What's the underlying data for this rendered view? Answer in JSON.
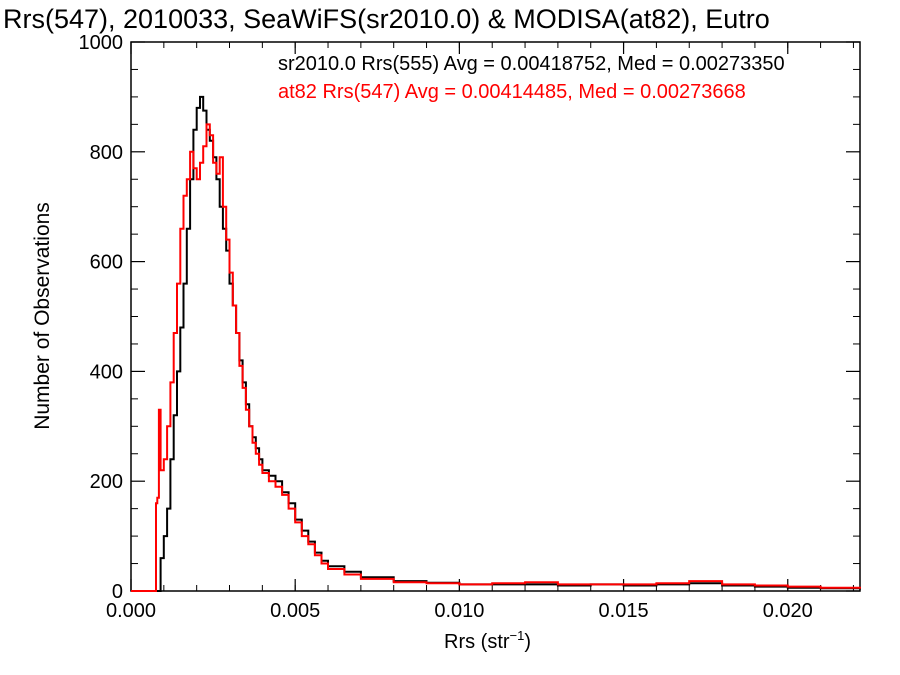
{
  "chart_data": {
    "type": "line",
    "title": "Rrs(547), 2010033, SeaWiFS(sr2010.0) & MODISA(at82), Eutro",
    "xlabel": "Rrs (str",
    "xlabel_sup": "−1",
    "xlabel_suffix": ")",
    "ylabel": "Number of Observations",
    "xlim": [
      0.0,
      0.0222
    ],
    "ylim": [
      0,
      1000
    ],
    "xticks": [
      0.0,
      0.005,
      0.01,
      0.015,
      0.02
    ],
    "xtick_labels": [
      "0.000",
      "0.005",
      "0.010",
      "0.015",
      "0.020"
    ],
    "yticks": [
      0,
      200,
      400,
      600,
      800,
      1000
    ],
    "ytick_labels": [
      "0",
      "200",
      "400",
      "600",
      "800",
      "1000"
    ],
    "series": [
      {
        "name": "sr2010.0",
        "legend": "sr2010.0 Rrs(555) Avg = 0.00418752, Med = 0.00273350",
        "color": "#000000",
        "points": [
          [
            0.0,
            0
          ],
          [
            0.0007,
            0
          ],
          [
            0.00085,
            0
          ],
          [
            0.0009,
            60
          ],
          [
            0.001,
            100
          ],
          [
            0.0011,
            150
          ],
          [
            0.0012,
            240
          ],
          [
            0.0013,
            320
          ],
          [
            0.0014,
            400
          ],
          [
            0.0015,
            480
          ],
          [
            0.0016,
            560
          ],
          [
            0.0017,
            660
          ],
          [
            0.0018,
            750
          ],
          [
            0.0019,
            840
          ],
          [
            0.002,
            880
          ],
          [
            0.0021,
            900
          ],
          [
            0.0022,
            875
          ],
          [
            0.0023,
            840
          ],
          [
            0.0024,
            820
          ],
          [
            0.0025,
            790
          ],
          [
            0.0026,
            750
          ],
          [
            0.0027,
            700
          ],
          [
            0.0028,
            660
          ],
          [
            0.0029,
            620
          ],
          [
            0.003,
            560
          ],
          [
            0.0031,
            520
          ],
          [
            0.0032,
            470
          ],
          [
            0.0033,
            420
          ],
          [
            0.0034,
            380
          ],
          [
            0.0035,
            340
          ],
          [
            0.0036,
            300
          ],
          [
            0.0037,
            280
          ],
          [
            0.0038,
            260
          ],
          [
            0.0039,
            240
          ],
          [
            0.004,
            220
          ],
          [
            0.0042,
            210
          ],
          [
            0.0044,
            200
          ],
          [
            0.0046,
            180
          ],
          [
            0.0048,
            160
          ],
          [
            0.005,
            130
          ],
          [
            0.0052,
            110
          ],
          [
            0.0054,
            90
          ],
          [
            0.0056,
            70
          ],
          [
            0.0058,
            55
          ],
          [
            0.006,
            45
          ],
          [
            0.0065,
            35
          ],
          [
            0.007,
            25
          ],
          [
            0.008,
            18
          ],
          [
            0.009,
            15
          ],
          [
            0.01,
            12
          ],
          [
            0.011,
            12
          ],
          [
            0.012,
            12
          ],
          [
            0.013,
            10
          ],
          [
            0.014,
            12
          ],
          [
            0.015,
            10
          ],
          [
            0.016,
            12
          ],
          [
            0.017,
            14
          ],
          [
            0.018,
            10
          ],
          [
            0.019,
            8
          ],
          [
            0.02,
            6
          ],
          [
            0.021,
            5
          ],
          [
            0.0222,
            3
          ]
        ]
      },
      {
        "name": "at82",
        "legend": "at82 Rrs(547) Avg = 0.00414485, Med = 0.00273668",
        "color": "#ff0000",
        "points": [
          [
            0.0,
            0
          ],
          [
            0.00075,
            0
          ],
          [
            0.00076,
            160
          ],
          [
            0.0008,
            170
          ],
          [
            0.00085,
            330
          ],
          [
            0.0009,
            220
          ],
          [
            0.001,
            240
          ],
          [
            0.0011,
            300
          ],
          [
            0.0012,
            380
          ],
          [
            0.0013,
            470
          ],
          [
            0.0014,
            560
          ],
          [
            0.0015,
            660
          ],
          [
            0.0016,
            720
          ],
          [
            0.0017,
            750
          ],
          [
            0.0018,
            800
          ],
          [
            0.0019,
            770
          ],
          [
            0.002,
            750
          ],
          [
            0.0021,
            780
          ],
          [
            0.0022,
            810
          ],
          [
            0.0023,
            850
          ],
          [
            0.0024,
            830
          ],
          [
            0.0025,
            780
          ],
          [
            0.0026,
            760
          ],
          [
            0.0027,
            790
          ],
          [
            0.0028,
            700
          ],
          [
            0.0029,
            640
          ],
          [
            0.003,
            580
          ],
          [
            0.0031,
            520
          ],
          [
            0.0032,
            470
          ],
          [
            0.0033,
            410
          ],
          [
            0.0034,
            370
          ],
          [
            0.0035,
            330
          ],
          [
            0.0036,
            300
          ],
          [
            0.0037,
            270
          ],
          [
            0.0038,
            250
          ],
          [
            0.0039,
            230
          ],
          [
            0.004,
            215
          ],
          [
            0.0042,
            200
          ],
          [
            0.0044,
            190
          ],
          [
            0.0046,
            175
          ],
          [
            0.0048,
            150
          ],
          [
            0.005,
            125
          ],
          [
            0.0052,
            100
          ],
          [
            0.0054,
            85
          ],
          [
            0.0056,
            65
          ],
          [
            0.0058,
            50
          ],
          [
            0.006,
            40
          ],
          [
            0.0065,
            30
          ],
          [
            0.007,
            22
          ],
          [
            0.008,
            16
          ],
          [
            0.009,
            14
          ],
          [
            0.01,
            12
          ],
          [
            0.011,
            14
          ],
          [
            0.012,
            16
          ],
          [
            0.013,
            12
          ],
          [
            0.014,
            12
          ],
          [
            0.015,
            12
          ],
          [
            0.016,
            14
          ],
          [
            0.017,
            18
          ],
          [
            0.018,
            12
          ],
          [
            0.019,
            10
          ],
          [
            0.02,
            8
          ],
          [
            0.021,
            6
          ],
          [
            0.0222,
            4
          ]
        ]
      }
    ]
  }
}
